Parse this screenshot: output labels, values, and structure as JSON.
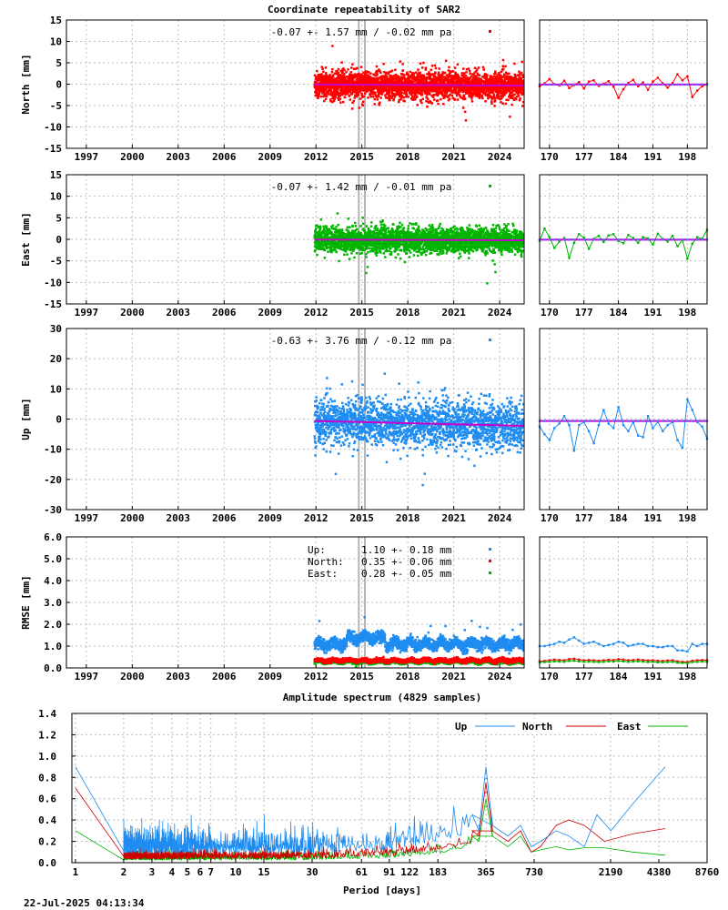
{
  "page": {
    "title": "Coordinate repeatability of SAR2",
    "timestamp": "22-Jul-2025 04:13:34"
  },
  "colors": {
    "north": "#ff0000",
    "east": "#00b400",
    "up": "#1e8cf0",
    "mean_line": "#cc00cc",
    "event_line": "#b4b4b4"
  },
  "chart_data": [
    {
      "id": "north",
      "type": "scatter",
      "ylabel": "North [mm]",
      "ylim": [
        -15,
        15
      ],
      "yticks": [
        "15",
        "10",
        "5",
        "0",
        "-5",
        "-10",
        "-15"
      ],
      "ytick_values": [
        15,
        10,
        5,
        0,
        -5,
        -10,
        -15
      ],
      "xlim": [
        1995.7,
        2025.6
      ],
      "xticks": [
        "1997",
        "2000",
        "2003",
        "2006",
        "2009",
        "2012",
        "2015",
        "2018",
        "2021",
        "2024"
      ],
      "xtick_values": [
        1997,
        2000,
        2003,
        2006,
        2009,
        2012,
        2015,
        2018,
        2021,
        2024
      ],
      "data_start": 2011.9,
      "data_end": 2025.55,
      "scatter_sigma": 1.57,
      "event_years": [
        2014.8,
        2015.2
      ],
      "annotation": "-0.07 +- 1.57 mm / -0.02 mm pa",
      "mean": -0.07,
      "trend_per_year": -0.02,
      "zoom": {
        "xlim": [
          168,
          202
        ],
        "xticks": [
          "170",
          "177",
          "184",
          "191",
          "198"
        ],
        "xtick_values": [
          170,
          177,
          184,
          191,
          198
        ],
        "days": [
          168,
          169,
          170,
          171,
          172,
          173,
          174,
          175,
          176,
          177,
          178,
          179,
          180,
          181,
          182,
          183,
          184,
          185,
          186,
          187,
          188,
          189,
          190,
          191,
          192,
          193,
          194,
          195,
          196,
          197,
          198,
          199,
          200,
          201,
          202
        ],
        "values": [
          -0.5,
          0.2,
          1.2,
          0.0,
          -0.3,
          0.8,
          -0.9,
          -0.2,
          0.5,
          -1.0,
          0.6,
          0.9,
          -0.4,
          0.1,
          0.7,
          -0.6,
          -3.2,
          -1.2,
          0.3,
          1.0,
          -0.5,
          0.4,
          -1.3,
          0.6,
          1.5,
          0.2,
          -0.8,
          0.3,
          2.3,
          0.9,
          1.8,
          -3.0,
          -1.5,
          -0.5,
          0.0
        ]
      }
    },
    {
      "id": "east",
      "type": "scatter",
      "ylabel": "East [mm]",
      "ylim": [
        -15,
        15
      ],
      "yticks": [
        "15",
        "10",
        "5",
        "0",
        "-5",
        "-10",
        "-15"
      ],
      "ytick_values": [
        15,
        10,
        5,
        0,
        -5,
        -10,
        -15
      ],
      "xlim": [
        1995.7,
        2025.6
      ],
      "xticks": [
        "1997",
        "2000",
        "2003",
        "2006",
        "2009",
        "2012",
        "2015",
        "2018",
        "2021",
        "2024"
      ],
      "xtick_values": [
        1997,
        2000,
        2003,
        2006,
        2009,
        2012,
        2015,
        2018,
        2021,
        2024
      ],
      "data_start": 2011.9,
      "data_end": 2025.55,
      "scatter_sigma": 1.42,
      "event_years": [
        2014.8,
        2015.2
      ],
      "annotation": "-0.07 +- 1.42 mm / -0.01 mm pa",
      "mean": -0.07,
      "trend_per_year": -0.01,
      "zoom": {
        "xlim": [
          168,
          202
        ],
        "xticks": [
          "170",
          "177",
          "184",
          "191",
          "198"
        ],
        "xtick_values": [
          170,
          177,
          184,
          191,
          198
        ],
        "days": [
          168,
          169,
          170,
          171,
          172,
          173,
          174,
          175,
          176,
          177,
          178,
          179,
          180,
          181,
          182,
          183,
          184,
          185,
          186,
          187,
          188,
          189,
          190,
          191,
          192,
          193,
          194,
          195,
          196,
          197,
          198,
          199,
          200,
          201,
          202
        ],
        "values": [
          -0.3,
          2.5,
          0.5,
          -2.0,
          -0.5,
          0.3,
          -4.3,
          -0.8,
          1.2,
          0.4,
          -2.2,
          0.1,
          0.8,
          -0.6,
          0.9,
          1.2,
          -0.4,
          -0.9,
          1.0,
          0.3,
          -0.8,
          0.5,
          0.2,
          -1.2,
          1.3,
          0.1,
          -0.5,
          0.8,
          -1.6,
          -0.2,
          -4.5,
          -1.0,
          0.5,
          0.1,
          2.2
        ]
      }
    },
    {
      "id": "up",
      "type": "scatter",
      "ylabel": "Up [mm]",
      "ylim": [
        -30,
        30
      ],
      "yticks": [
        "30",
        "20",
        "10",
        "0",
        "-10",
        "-20",
        "-30"
      ],
      "ytick_values": [
        30,
        20,
        10,
        0,
        -10,
        -20,
        -30
      ],
      "xlim": [
        1995.7,
        2025.6
      ],
      "xticks": [
        "1997",
        "2000",
        "2003",
        "2006",
        "2009",
        "2012",
        "2015",
        "2018",
        "2021",
        "2024"
      ],
      "xtick_values": [
        1997,
        2000,
        2003,
        2006,
        2009,
        2012,
        2015,
        2018,
        2021,
        2024
      ],
      "data_start": 2011.9,
      "data_end": 2025.55,
      "scatter_sigma": 3.76,
      "event_years": [
        2014.8,
        2015.2
      ],
      "annotation": "-0.63 +- 3.76 mm / -0.12 mm pa",
      "mean": -0.63,
      "trend_per_year": -0.12,
      "zoom": {
        "xlim": [
          168,
          202
        ],
        "xticks": [
          "170",
          "177",
          "184",
          "191",
          "198"
        ],
        "xtick_values": [
          170,
          177,
          184,
          191,
          198
        ],
        "days": [
          168,
          169,
          170,
          171,
          172,
          173,
          174,
          175,
          176,
          177,
          178,
          179,
          180,
          181,
          182,
          183,
          184,
          185,
          186,
          187,
          188,
          189,
          190,
          191,
          192,
          193,
          194,
          195,
          196,
          197,
          198,
          199,
          200,
          201,
          202
        ],
        "values": [
          -2.5,
          -5.0,
          -7.0,
          -3.0,
          -1.5,
          1.0,
          -2.0,
          -10.5,
          -2.0,
          -1.0,
          -4.0,
          -8.0,
          -2.0,
          3.0,
          -1.5,
          -3.0,
          4.0,
          -2.0,
          -4.0,
          -1.0,
          -5.5,
          -6.0,
          1.0,
          -3.0,
          -1.0,
          -4.0,
          -2.0,
          -1.0,
          -7.0,
          -9.5,
          6.5,
          3.0,
          -1.0,
          -2.5,
          -6.5
        ]
      }
    }
  ],
  "rmse": {
    "ylabel": "RMSE [mm]",
    "ylim": [
      0,
      6
    ],
    "yticks": [
      "6.0",
      "5.0",
      "4.0",
      "3.0",
      "2.0",
      "1.0",
      "0.0"
    ],
    "ytick_values": [
      6,
      5,
      4,
      3,
      2,
      1,
      0
    ],
    "xlim": [
      1995.7,
      2025.6
    ],
    "xticks": [
      "1997",
      "2000",
      "2003",
      "2006",
      "2009",
      "2012",
      "2015",
      "2018",
      "2021",
      "2024"
    ],
    "xtick_values": [
      1997,
      2000,
      2003,
      2006,
      2009,
      2012,
      2015,
      2018,
      2021,
      2024
    ],
    "data_start": 2011.9,
    "data_end": 2025.55,
    "event_years": [
      2014.8,
      2015.2
    ],
    "legend": [
      {
        "label": "Up:",
        "value": "1.10 +- 0.18 mm",
        "color": "#1e8cf0",
        "mean": 1.1,
        "sd": 0.18
      },
      {
        "label": "North:",
        "value": "0.35 +- 0.06 mm",
        "color": "#ff0000",
        "mean": 0.35,
        "sd": 0.06
      },
      {
        "label": "East:",
        "value": "0.28 +- 0.05 mm",
        "color": "#00b400",
        "mean": 0.28,
        "sd": 0.05
      }
    ],
    "zoom": {
      "xlim": [
        168,
        202
      ],
      "xticks": [
        "170",
        "177",
        "184",
        "191",
        "198"
      ],
      "xtick_values": [
        170,
        177,
        184,
        191,
        198
      ],
      "up": [
        1.0,
        1.0,
        1.05,
        1.1,
        1.2,
        1.15,
        1.3,
        1.4,
        1.25,
        1.1,
        1.15,
        1.2,
        1.1,
        1.0,
        1.05,
        1.1,
        1.2,
        1.15,
        1.0,
        1.05,
        1.1,
        1.1,
        1.0,
        1.0,
        0.95,
        0.95,
        1.0,
        1.0,
        0.8,
        0.8,
        0.75,
        1.1,
        1.0,
        1.1,
        1.1
      ],
      "north": [
        0.3,
        0.32,
        0.35,
        0.38,
        0.36,
        0.35,
        0.4,
        0.42,
        0.38,
        0.35,
        0.36,
        0.35,
        0.33,
        0.35,
        0.37,
        0.36,
        0.4,
        0.38,
        0.35,
        0.36,
        0.38,
        0.36,
        0.34,
        0.35,
        0.33,
        0.32,
        0.34,
        0.35,
        0.3,
        0.28,
        0.27,
        0.33,
        0.35,
        0.36,
        0.35
      ],
      "east": [
        0.25,
        0.27,
        0.28,
        0.3,
        0.29,
        0.28,
        0.32,
        0.33,
        0.3,
        0.28,
        0.29,
        0.28,
        0.27,
        0.28,
        0.3,
        0.29,
        0.32,
        0.3,
        0.28,
        0.29,
        0.3,
        0.29,
        0.27,
        0.28,
        0.26,
        0.26,
        0.27,
        0.28,
        0.24,
        0.23,
        0.22,
        0.27,
        0.28,
        0.29,
        0.28
      ]
    }
  },
  "spectrum": {
    "type": "line",
    "title": "Amplitude spectrum (4829 samples)",
    "xlabel": "Period [days]",
    "ylim": [
      0,
      1.4
    ],
    "yticks": [
      "1.4",
      "1.2",
      "1.0",
      "0.8",
      "0.6",
      "0.4",
      "0.2",
      "0.0"
    ],
    "ytick_values": [
      1.4,
      1.2,
      1.0,
      0.8,
      0.6,
      0.4,
      0.2,
      0.0
    ],
    "xscale": "log",
    "xlim": [
      0.95,
      8760
    ],
    "xticks": [
      "1",
      "2",
      "3",
      "4",
      "5",
      "6",
      "7",
      "10",
      "15",
      "30",
      "61",
      "91",
      "122",
      "183",
      "365",
      "730",
      "2190",
      "4380",
      "8760"
    ],
    "xtick_values": [
      1,
      2,
      3,
      4,
      5,
      6,
      7,
      10,
      15,
      30,
      61,
      91,
      122,
      183,
      365,
      730,
      2190,
      4380,
      8760
    ],
    "legend": [
      "Up",
      "North",
      "East"
    ],
    "series": [
      {
        "name": "Up",
        "color": "#1e8cf0",
        "noise_base": 0.12,
        "x": [
          1,
          1.05,
          30,
          100,
          200,
          300,
          330,
          365,
          400,
          500,
          600,
          700,
          800,
          1000,
          1200,
          1500,
          1800,
          2200,
          3000,
          4800
        ],
        "y": [
          0.9,
          0.15,
          0.15,
          0.2,
          0.35,
          0.45,
          0.3,
          0.9,
          0.35,
          0.25,
          0.35,
          0.15,
          0.2,
          0.3,
          0.25,
          0.15,
          0.45,
          0.3,
          0.55,
          0.9
        ]
      },
      {
        "name": "North",
        "color": "#cc0000",
        "noise_base": 0.05,
        "x": [
          1,
          1.05,
          30,
          100,
          200,
          300,
          330,
          365,
          400,
          500,
          600,
          700,
          800,
          1000,
          1200,
          1500,
          2000,
          3000,
          4800
        ],
        "y": [
          0.7,
          0.05,
          0.06,
          0.12,
          0.2,
          0.3,
          0.25,
          0.75,
          0.3,
          0.2,
          0.3,
          0.1,
          0.15,
          0.35,
          0.4,
          0.35,
          0.2,
          0.27,
          0.32
        ]
      },
      {
        "name": "East",
        "color": "#00b400",
        "noise_base": 0.04,
        "x": [
          1,
          1.05,
          30,
          100,
          200,
          300,
          330,
          365,
          400,
          500,
          600,
          700,
          800,
          1000,
          1200,
          1500,
          2000,
          3000,
          4800
        ],
        "y": [
          0.3,
          0.04,
          0.04,
          0.08,
          0.15,
          0.25,
          0.2,
          0.6,
          0.25,
          0.15,
          0.25,
          0.1,
          0.12,
          0.15,
          0.12,
          0.14,
          0.14,
          0.1,
          0.07
        ]
      }
    ]
  }
}
